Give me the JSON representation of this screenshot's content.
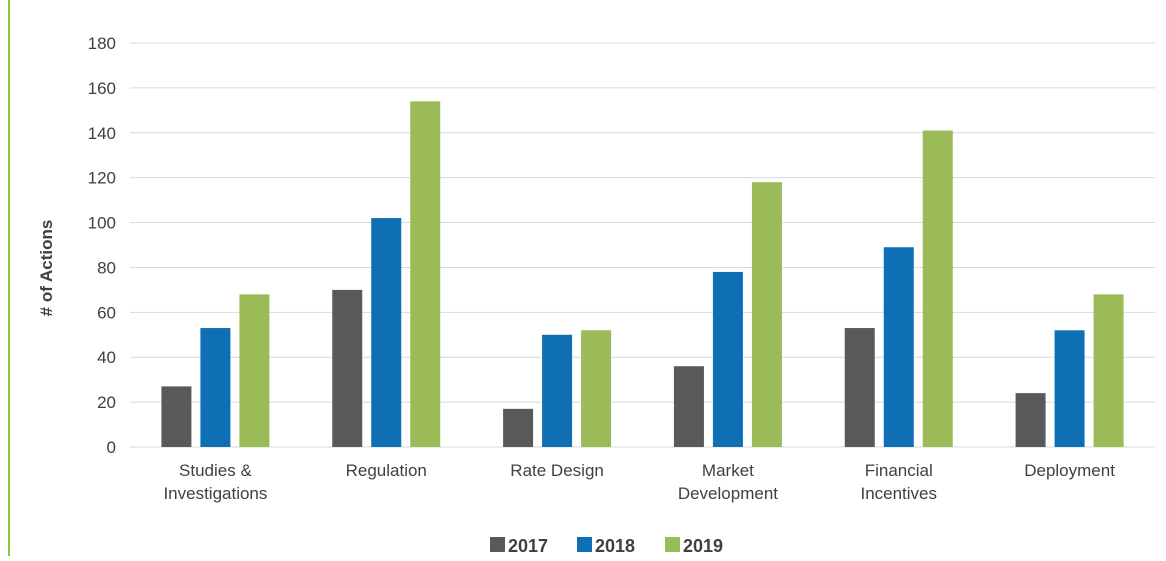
{
  "chart_data": {
    "type": "bar",
    "title": "",
    "xlabel": "",
    "ylabel": "# of Actions",
    "ylim": [
      0,
      180
    ],
    "yticks": [
      0,
      20,
      40,
      60,
      80,
      100,
      120,
      140,
      160,
      180
    ],
    "grid": true,
    "legend_position": "bottom",
    "categories": [
      [
        "Studies &",
        "Investigations"
      ],
      [
        "Regulation"
      ],
      [
        "Rate Design"
      ],
      [
        "Market",
        "Development"
      ],
      [
        "Financial",
        "Incentives"
      ],
      [
        "Deployment"
      ]
    ],
    "series": [
      {
        "name": "2017",
        "color": "#595959",
        "values": [
          27,
          70,
          17,
          36,
          53,
          24
        ]
      },
      {
        "name": "2018",
        "color": "#0f6fb4",
        "values": [
          53,
          102,
          50,
          78,
          89,
          52
        ]
      },
      {
        "name": "2019",
        "color": "#9bbb59",
        "values": [
          68,
          154,
          52,
          118,
          141,
          68
        ]
      }
    ]
  },
  "colors": {
    "gridline": "#d9d9d9",
    "axis_text": "#404040",
    "accent_rule": "#8dc63f"
  }
}
